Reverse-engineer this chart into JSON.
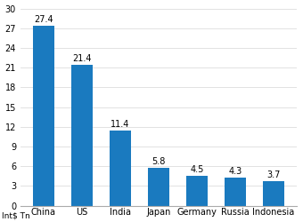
{
  "categories": [
    "China",
    "US",
    "India",
    "Japan",
    "Germany",
    "Russia",
    "Indonesia"
  ],
  "values": [
    27.4,
    21.4,
    11.4,
    5.8,
    4.5,
    4.3,
    3.7
  ],
  "bar_color": "#1a7abf",
  "ylabel": "Int$ Tn",
  "ylim": [
    0,
    30
  ],
  "yticks": [
    0,
    3,
    6,
    9,
    12,
    15,
    18,
    21,
    24,
    27,
    30
  ],
  "background_color": "#ffffff",
  "label_fontsize": 7.0,
  "tick_fontsize": 7.0,
  "ylabel_fontsize": 6.5,
  "bar_width": 0.55
}
